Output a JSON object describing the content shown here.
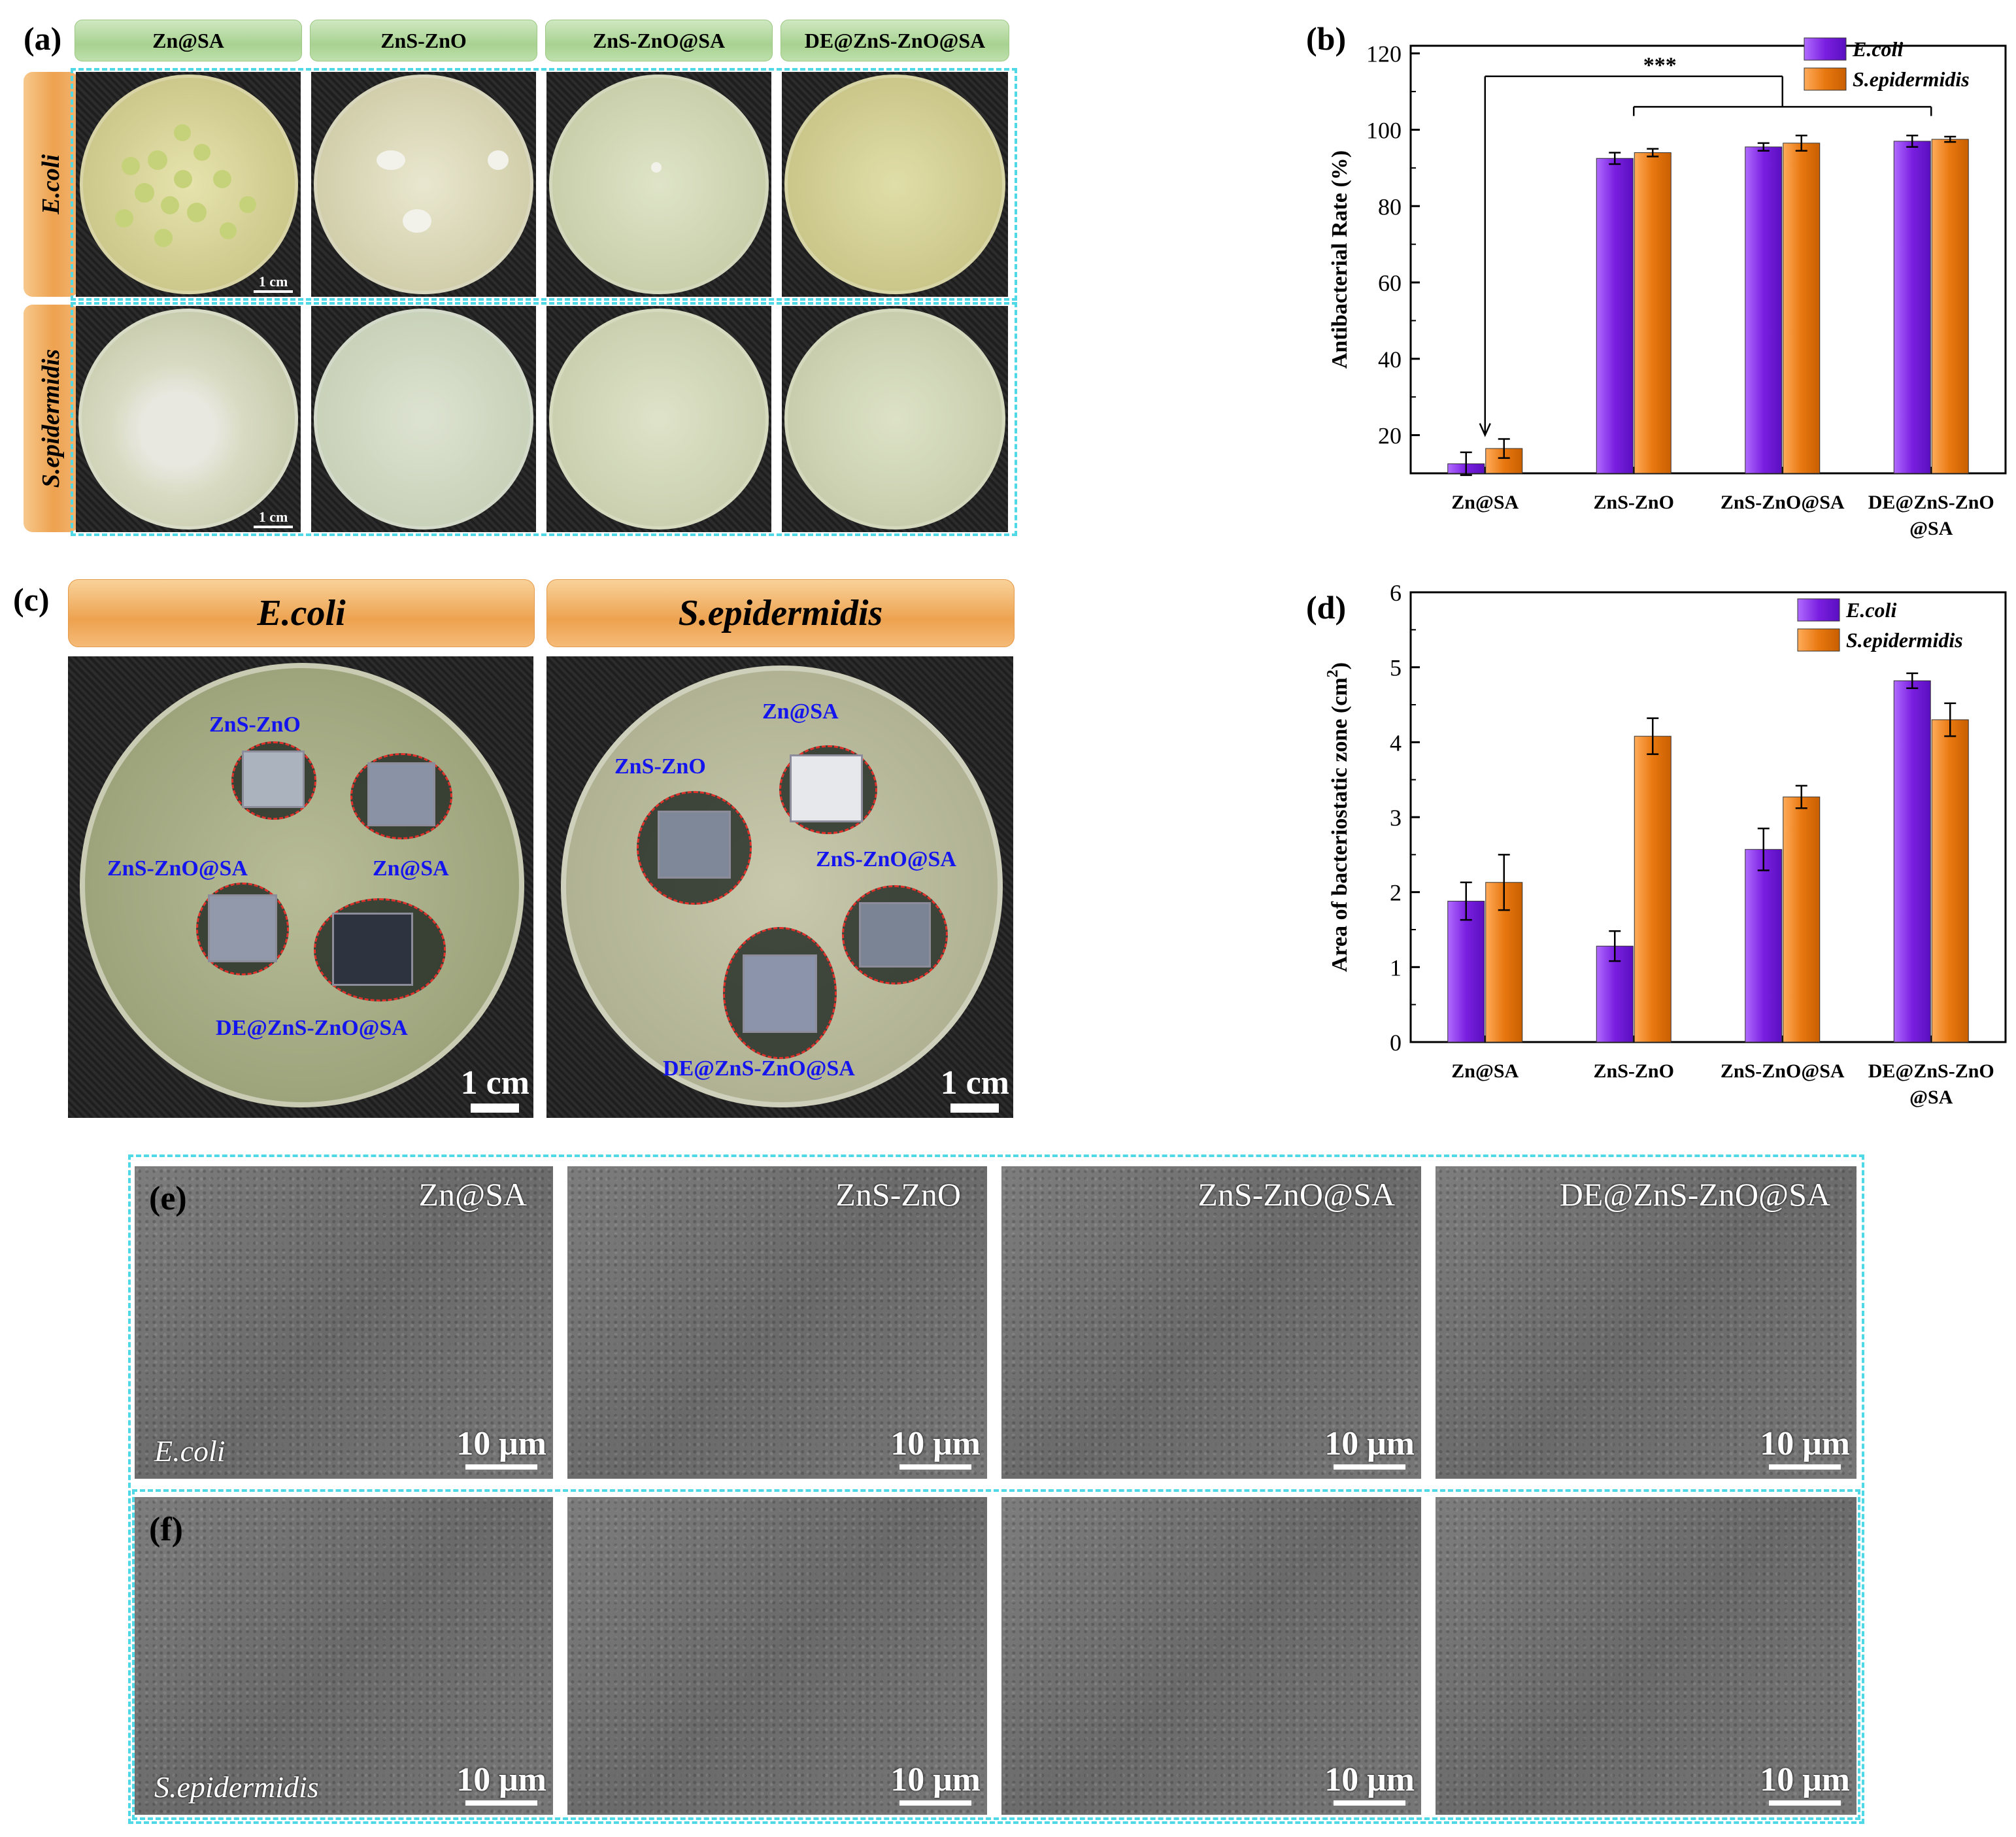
{
  "panel_labels": {
    "a": "(a)",
    "b": "(b)",
    "c": "(c)",
    "d": "(d)",
    "e": "(e)",
    "f": "(f)"
  },
  "panel_a": {
    "column_headers": [
      "Zn@SA",
      "ZnS-ZnO",
      "ZnS-ZnO@SA",
      "DE@ZnS-ZnO@SA"
    ],
    "row_labels": [
      "E.coli",
      "S.epidermidis"
    ],
    "scale_bar": "1 cm"
  },
  "panel_c": {
    "headers": [
      "E.coli",
      "S.epidermidis"
    ],
    "left_labels": [
      "ZnS-ZnO",
      "Zn@SA",
      "ZnS-ZnO@SA",
      "DE@ZnS-ZnO@SA"
    ],
    "right_labels": [
      "Zn@SA",
      "ZnS-ZnO",
      "ZnS-ZnO@SA",
      "DE@ZnS-ZnO@SA"
    ],
    "scale_bar": "1 cm",
    "halo_color": "#e0302a",
    "label_color": "#1414ee"
  },
  "panel_ef": {
    "titles": [
      "Zn@SA",
      "ZnS-ZnO",
      "ZnS-ZnO@SA",
      "DE@ZnS-ZnO@SA"
    ],
    "row_e_organism": "E.coli",
    "row_f_organism": "S.epidermidis",
    "scale_bar": "10 μm"
  },
  "colors": {
    "e_coli": "#7a1fe0",
    "s_epidermidis": "#e87810",
    "dash": "#4fd8e6"
  },
  "chart_data": [
    {
      "panel": "b",
      "type": "bar",
      "categories": [
        "Zn@SA",
        "ZnS-ZnO",
        "ZnS-ZnO@SA",
        "DE@ZnS-ZnO\n@SA"
      ],
      "series": [
        {
          "name": "E.coli",
          "values": [
            12.5,
            92.5,
            95.5,
            97
          ],
          "errors": [
            3,
            1.5,
            1,
            1.5
          ]
        },
        {
          "name": "S.epidermidis",
          "values": [
            16.5,
            94,
            96.5,
            97.5
          ],
          "errors": [
            2.5,
            1,
            2,
            0.7
          ]
        }
      ],
      "ylabel": "Antibacterial Rate (%)",
      "ylim": [
        10,
        122
      ],
      "yticks": [
        20,
        40,
        60,
        80,
        100,
        120
      ],
      "annotation": "***",
      "legend": "top-right"
    },
    {
      "panel": "d",
      "type": "bar",
      "categories": [
        "Zn@SA",
        "ZnS-ZnO",
        "ZnS-ZnO@SA",
        "DE@ZnS-ZnO\n@SA"
      ],
      "series": [
        {
          "name": "E.coli",
          "values": [
            1.88,
            1.28,
            2.57,
            4.82
          ],
          "errors": [
            0.25,
            0.2,
            0.28,
            0.1
          ]
        },
        {
          "name": "S.epidermidis",
          "values": [
            2.13,
            4.08,
            3.27,
            4.3
          ],
          "errors": [
            0.37,
            0.24,
            0.15,
            0.22
          ]
        }
      ],
      "ylabel": "Area of bacteriostatic zone (cm",
      "ylabel_sup": "2",
      "ylabel_tail": ")",
      "ylim": [
        0,
        6
      ],
      "yticks": [
        0,
        1,
        2,
        3,
        4,
        5,
        6
      ],
      "legend": "top-right"
    }
  ]
}
